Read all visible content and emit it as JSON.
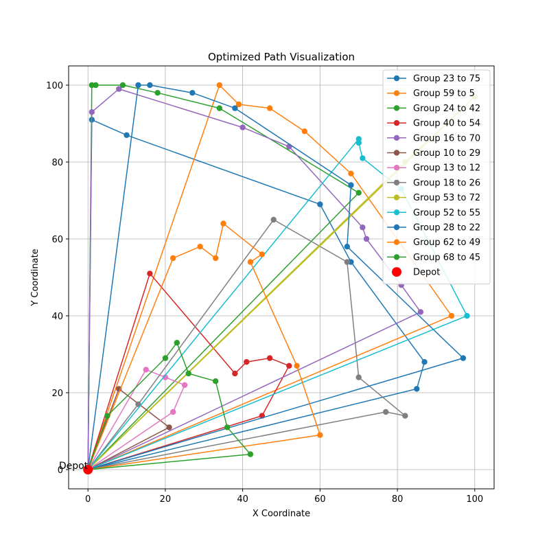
{
  "chart_data": {
    "type": "line",
    "title": "Optimized Path Visualization",
    "xlabel": "X Coordinate",
    "ylabel": "Y Coordinate",
    "xlim": [
      -5,
      105
    ],
    "ylim": [
      -5,
      105
    ],
    "xticks": [
      0,
      20,
      40,
      60,
      80,
      100
    ],
    "yticks": [
      0,
      20,
      40,
      60,
      80,
      100
    ],
    "grid": true,
    "legend_position": "top-right",
    "depot": {
      "x": 0,
      "y": 0,
      "label": "Depot",
      "legend": "Depot",
      "color": "#ff0000"
    },
    "series": [
      {
        "name": "Group 23 to 75",
        "color": "#1f77b4",
        "points": [
          [
            0,
            0
          ],
          [
            1,
            91
          ],
          [
            10,
            87
          ],
          [
            60,
            69
          ],
          [
            68,
            54
          ],
          [
            87,
            28
          ],
          [
            85,
            21
          ],
          [
            0,
            0
          ]
        ]
      },
      {
        "name": "Group 59 to 5",
        "color": "#ff7f0e",
        "points": [
          [
            0,
            0
          ],
          [
            34,
            100
          ],
          [
            39,
            95
          ],
          [
            47,
            94
          ],
          [
            56,
            88
          ],
          [
            68,
            77
          ],
          [
            94,
            40
          ],
          [
            0,
            0
          ]
        ]
      },
      {
        "name": "Group 24 to 42",
        "color": "#2ca02c",
        "points": [
          [
            0,
            0
          ],
          [
            1,
            100
          ],
          [
            2,
            100
          ],
          [
            9,
            100
          ],
          [
            18,
            98
          ],
          [
            34,
            94
          ],
          [
            70,
            72
          ],
          [
            0,
            0
          ]
        ]
      },
      {
        "name": "Group 40 to 54",
        "color": "#d62728",
        "points": [
          [
            0,
            0
          ],
          [
            16,
            51
          ],
          [
            38,
            25
          ],
          [
            41,
            28
          ],
          [
            47,
            29
          ],
          [
            52,
            27
          ],
          [
            45,
            14
          ],
          [
            0,
            0
          ]
        ]
      },
      {
        "name": "Group 16 to 70",
        "color": "#9467bd",
        "points": [
          [
            0,
            0
          ],
          [
            1,
            93
          ],
          [
            8,
            99
          ],
          [
            40,
            89
          ],
          [
            52,
            84
          ],
          [
            71,
            63
          ],
          [
            72,
            60
          ],
          [
            81,
            48
          ],
          [
            86,
            41
          ],
          [
            0,
            0
          ]
        ]
      },
      {
        "name": "Group 10 to 29",
        "color": "#8c564b",
        "points": [
          [
            0,
            0
          ],
          [
            8,
            21
          ],
          [
            21,
            11
          ],
          [
            0,
            0
          ]
        ]
      },
      {
        "name": "Group 13 to 12",
        "color": "#e377c2",
        "points": [
          [
            0,
            0
          ],
          [
            15,
            26
          ],
          [
            20,
            24
          ],
          [
            25,
            22
          ],
          [
            22,
            15
          ],
          [
            0,
            0
          ]
        ]
      },
      {
        "name": "Group 18 to 26",
        "color": "#7f7f7f",
        "points": [
          [
            0,
            0
          ],
          [
            13,
            17
          ],
          [
            48,
            65
          ],
          [
            67,
            54
          ],
          [
            70,
            24
          ],
          [
            82,
            14
          ],
          [
            77,
            15
          ],
          [
            0,
            0
          ]
        ]
      },
      {
        "name": "Group 53 to 72",
        "color": "#bcbd22",
        "points": [
          [
            0,
            0
          ],
          [
            82,
            80
          ],
          [
            100,
            97
          ],
          [
            0,
            0
          ]
        ]
      },
      {
        "name": "Group 52 to 55",
        "color": "#17becf",
        "points": [
          [
            0,
            0
          ],
          [
            70,
            86
          ],
          [
            70,
            85
          ],
          [
            71,
            81
          ],
          [
            81,
            73
          ],
          [
            98,
            40
          ],
          [
            0,
            0
          ]
        ]
      },
      {
        "name": "Group 28 to 22",
        "color": "#1f77b4",
        "points": [
          [
            0,
            0
          ],
          [
            13,
            100
          ],
          [
            16,
            100
          ],
          [
            27,
            98
          ],
          [
            38,
            94
          ],
          [
            68,
            74
          ],
          [
            67,
            58
          ],
          [
            97,
            29
          ],
          [
            0,
            0
          ]
        ]
      },
      {
        "name": "Group 62 to 49",
        "color": "#ff7f0e",
        "points": [
          [
            0,
            0
          ],
          [
            22,
            55
          ],
          [
            29,
            58
          ],
          [
            33,
            55
          ],
          [
            35,
            64
          ],
          [
            45,
            56
          ],
          [
            42,
            54
          ],
          [
            54,
            27
          ],
          [
            60,
            9
          ],
          [
            0,
            0
          ]
        ]
      },
      {
        "name": "Group 68 to 45",
        "color": "#2ca02c",
        "points": [
          [
            0,
            0
          ],
          [
            5,
            14
          ],
          [
            20,
            29
          ],
          [
            23,
            33
          ],
          [
            26,
            25
          ],
          [
            33,
            23
          ],
          [
            36,
            11
          ],
          [
            42,
            4
          ],
          [
            0,
            0
          ]
        ]
      }
    ]
  }
}
